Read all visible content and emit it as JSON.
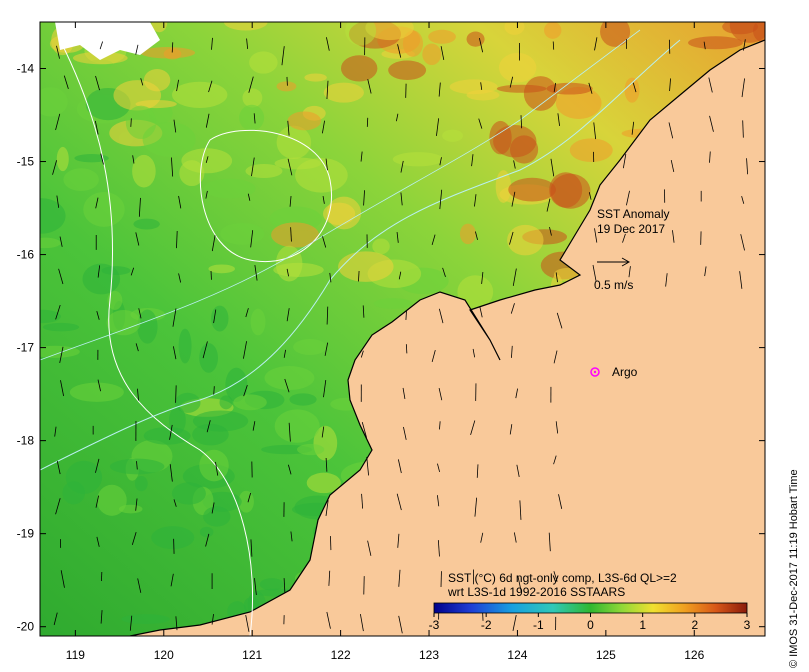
{
  "map": {
    "x_ticks": [
      "119",
      "120",
      "121",
      "122",
      "123",
      "124",
      "125",
      "126"
    ],
    "y_ticks": [
      "-14",
      "-15",
      "-16",
      "-17",
      "-18",
      "-19",
      "-20"
    ],
    "lon_range": [
      118.6,
      126.8
    ],
    "lat_range": [
      -20.1,
      -13.5
    ],
    "land_color": "#f9c99a",
    "ocean_colors": [
      "#2db33a",
      "#6cd13a",
      "#b6e03a",
      "#f0d23a",
      "#f09a2a",
      "#c8501a"
    ]
  },
  "annotation": {
    "title_line1": "SST Anomaly",
    "title_line2": "19 Dec 2017",
    "scale_label": "0.5 m/s",
    "argo_label": "Argo"
  },
  "legend": {
    "line1": "SST (°C) 6d ngt-only comp, L3S-6d QL>=2",
    "line2": "wrt L3S-1d 1992-2016 SSTAARS",
    "ticks": [
      "-3",
      "-2",
      "-1",
      "0",
      "1",
      "2",
      "3"
    ],
    "colors": [
      "#00008b",
      "#1f3fd6",
      "#18a0e0",
      "#30c8b8",
      "#30b830",
      "#90d838",
      "#f0e030",
      "#f0a020",
      "#d85818",
      "#8b1a0a"
    ]
  },
  "credit": "© IMOS 31-Dec-2017 11:19 Hobart Time"
}
